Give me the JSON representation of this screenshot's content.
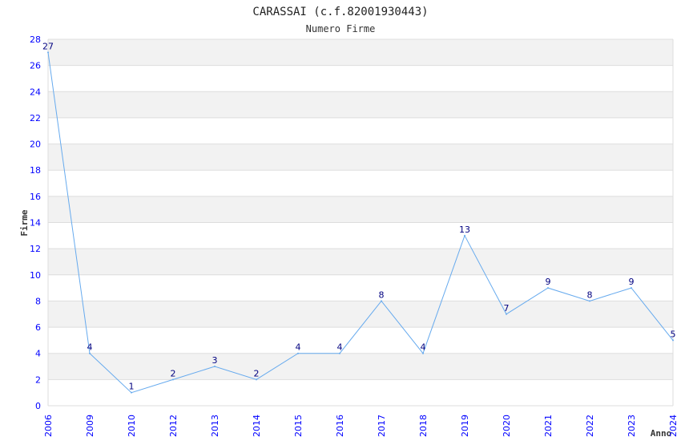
{
  "chart_data": {
    "type": "line",
    "title": "CARASSAI (c.f.82001930443)",
    "subtitle": "Numero Firme",
    "xlabel": "Anno",
    "ylabel": "Firme",
    "categories": [
      "2006",
      "2009",
      "2010",
      "2012",
      "2013",
      "2014",
      "2015",
      "2016",
      "2017",
      "2018",
      "2019",
      "2020",
      "2021",
      "2022",
      "2023",
      "2024"
    ],
    "series": [
      {
        "name": "Numero Firme",
        "values": [
          27,
          4,
          1,
          2,
          3,
          2,
          4,
          4,
          8,
          4,
          13,
          7,
          9,
          8,
          9,
          5
        ]
      }
    ],
    "ylim": [
      0,
      28
    ],
    "yticks": [
      0,
      2,
      4,
      6,
      8,
      10,
      12,
      14,
      16,
      18,
      20,
      22,
      24,
      26,
      28
    ],
    "grid": true,
    "colors": {
      "line": "#66aaee",
      "tick": "#0000ff",
      "label": "#000080",
      "band": "#f2f2f2",
      "grid": "#dddddd"
    }
  }
}
